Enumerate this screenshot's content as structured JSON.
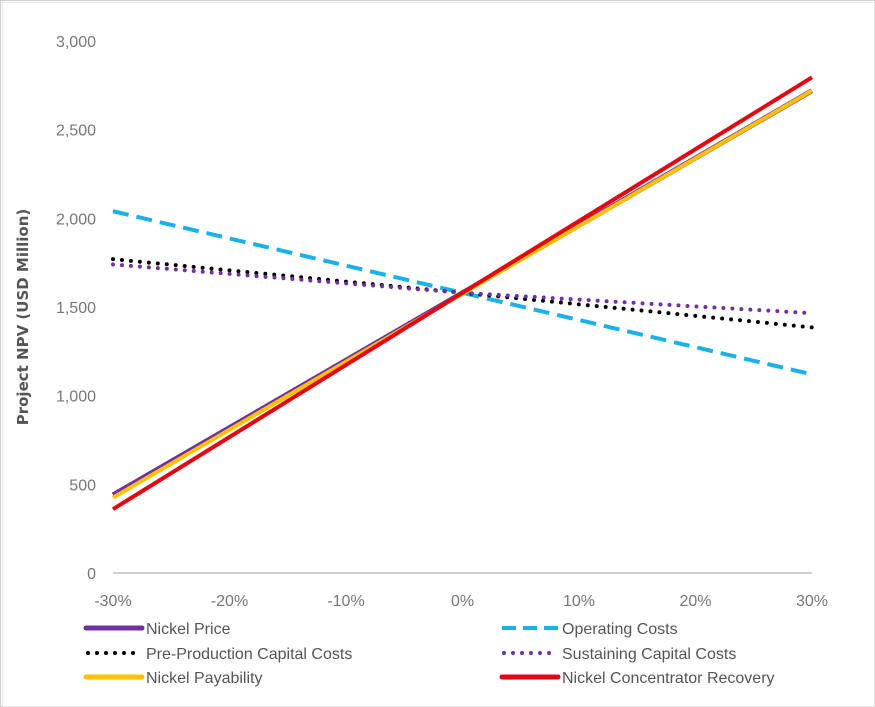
{
  "chart_data": {
    "type": "line",
    "title": "",
    "xlabel": "",
    "ylabel": "Project NPV (USD Million)",
    "x": [
      -30,
      30
    ],
    "xticks": [
      "-30%",
      "-20%",
      "-10%",
      "0%",
      "10%",
      "20%",
      "30%"
    ],
    "xtick_values": [
      -30,
      -20,
      -10,
      0,
      10,
      20,
      30
    ],
    "yticks": [
      "0",
      "500",
      "1,000",
      "1,500",
      "2,000",
      "2,500",
      "3,000"
    ],
    "ytick_values": [
      0,
      500,
      1000,
      1500,
      2000,
      2500,
      3000
    ],
    "xlim": [
      -30,
      30
    ],
    "ylim": [
      0,
      3000
    ],
    "grid": false,
    "legend_position": "bottom",
    "series": [
      {
        "name": "Nickel Price",
        "x": [
          -30,
          0,
          30
        ],
        "values": [
          440,
          1580,
          2720
        ],
        "color": "#7030A0",
        "style": "solid"
      },
      {
        "name": "Operating Costs",
        "x": [
          -30,
          0,
          30
        ],
        "values": [
          2040,
          1580,
          1120
        ],
        "color": "#1AB0E8",
        "style": "dashed"
      },
      {
        "name": "Pre-Production Capital Costs",
        "x": [
          -30,
          0,
          30
        ],
        "values": [
          1770,
          1580,
          1385
        ],
        "color": "#000000",
        "style": "dotted"
      },
      {
        "name": "Sustaining Capital Costs",
        "x": [
          -30,
          0,
          30
        ],
        "values": [
          1740,
          1580,
          1465
        ],
        "color": "#7030A0",
        "style": "dotted"
      },
      {
        "name": "Nickel Payability",
        "x": [
          -30,
          0,
          30
        ],
        "values": [
          425,
          1575,
          2720
        ],
        "color": "#FFC000",
        "style": "solid"
      },
      {
        "name": "Nickel Concentrator Recovery",
        "x": [
          -30,
          0,
          30
        ],
        "values": [
          360,
          1580,
          2795
        ],
        "color": "#E30613",
        "style": "solid"
      }
    ],
    "legend": [
      "Nickel Price",
      "Operating Costs",
      "Pre-Production Capital Costs",
      "Sustaining Capital Costs",
      "Nickel Payability",
      "Nickel Concentrator Recovery"
    ]
  }
}
